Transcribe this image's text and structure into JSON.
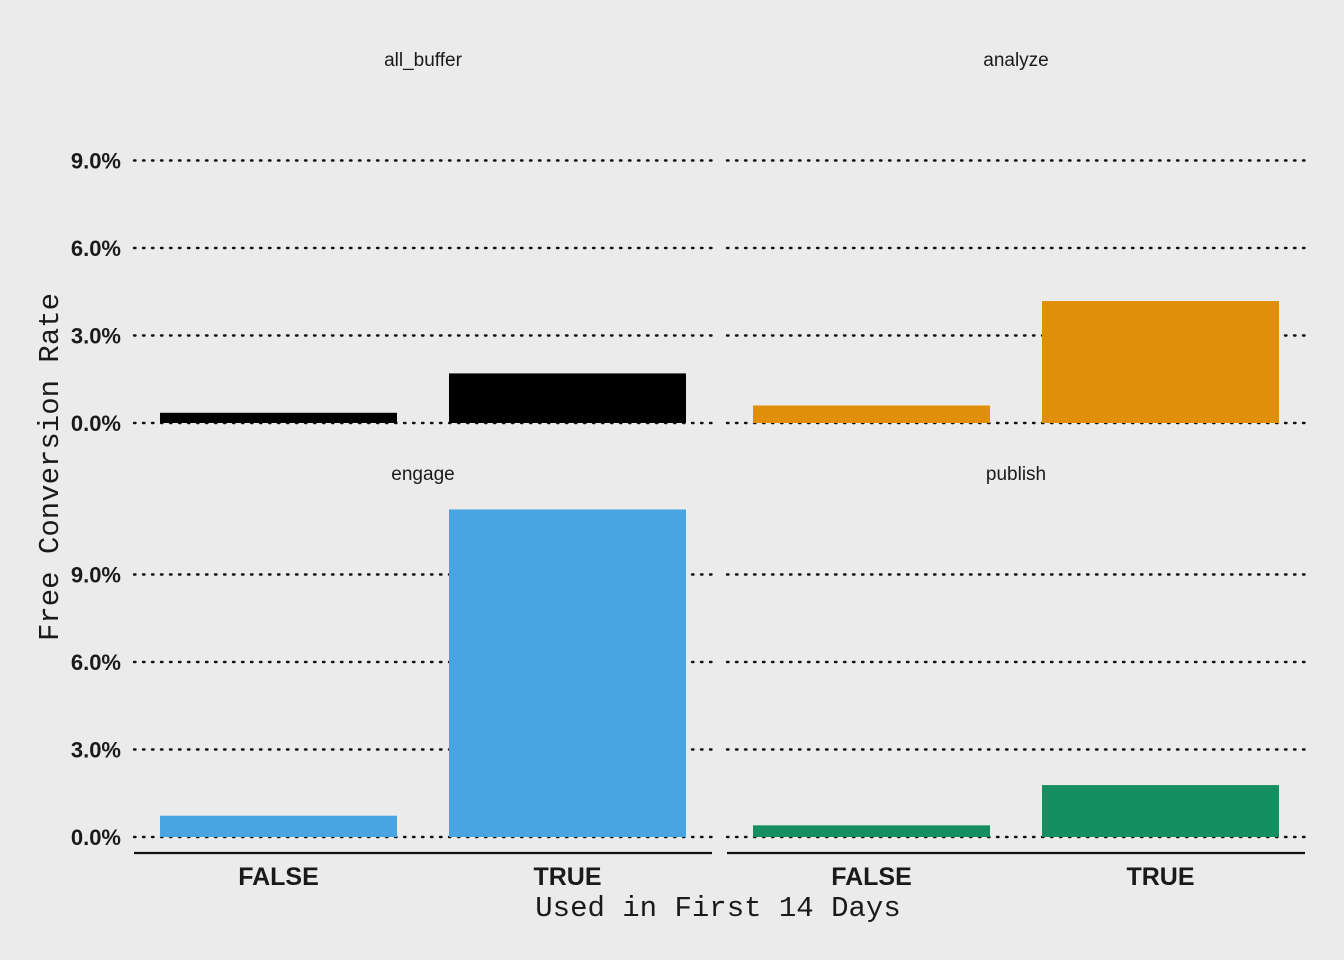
{
  "chart_data": {
    "type": "bar",
    "xlabel": "Used in First 14 Days",
    "ylabel": "Free Conversion Rate",
    "categories": [
      "FALSE",
      "TRUE"
    ],
    "ylim": [
      0,
      0.12
    ],
    "yticks": [
      0,
      0.03,
      0.06,
      0.09
    ],
    "ytick_labels": [
      "0.0%",
      "3.0%",
      "6.0%",
      "9.0%"
    ],
    "grid": "horizontal dotted",
    "legend": "none",
    "facets": [
      {
        "name": "all_buffer",
        "color": "#000000",
        "values": [
          0.0035,
          0.017
        ]
      },
      {
        "name": "analyze",
        "color": "#df8f0a",
        "values": [
          0.006,
          0.0418
        ]
      },
      {
        "name": "engage",
        "color": "#49a5e2",
        "values": [
          0.0073,
          0.1123
        ]
      },
      {
        "name": "publish",
        "color": "#158f62",
        "values": [
          0.004,
          0.0178
        ]
      }
    ]
  }
}
